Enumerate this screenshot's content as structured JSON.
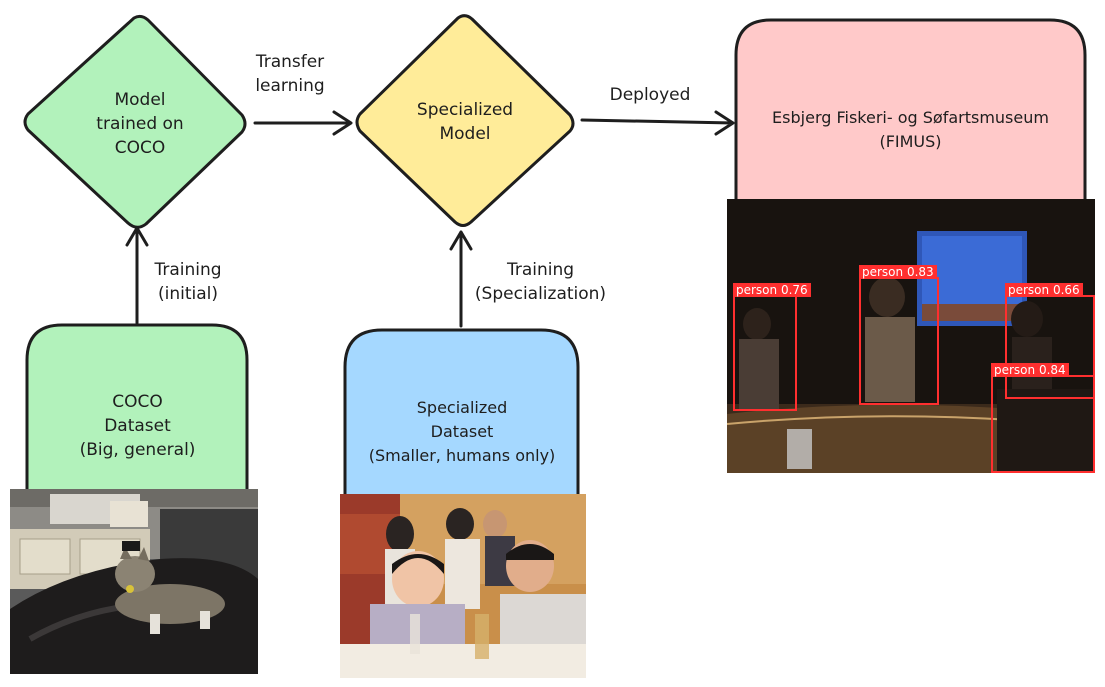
{
  "nodes": {
    "model_coco": {
      "lines": [
        "Model",
        "trained on",
        "COCO"
      ],
      "fill": "#b2f2bb"
    },
    "specialized_model": {
      "lines": [
        "Specialized",
        "Model"
      ],
      "fill": "#ffec99"
    },
    "museum": {
      "lines": [
        "Esbjerg Fiskeri- og Søfartsmuseum",
        "(FIMUS)"
      ],
      "fill": "#ffc9c9"
    },
    "coco_dataset": {
      "lines": [
        "COCO",
        "Dataset",
        "(Big, general)"
      ],
      "fill": "#b2f2bb"
    },
    "specialized_dataset": {
      "lines": [
        "Specialized",
        "Dataset",
        "(Smaller, humans only)"
      ],
      "fill": "#a5d8ff"
    }
  },
  "edges": {
    "transfer": [
      "Transfer",
      "learning"
    ],
    "deployed": [
      "Deployed"
    ],
    "training_initial": [
      "Training",
      "(initial)"
    ],
    "training_specialization": [
      "Training",
      "(Specialization)"
    ]
  },
  "detections": [
    {
      "label": "person 0.76"
    },
    {
      "label": "person 0.83"
    },
    {
      "label": "person 0.66"
    },
    {
      "label": "person 0.84"
    }
  ],
  "colors": {
    "stroke": "#1e1e1e",
    "detection": "#ff2f2f"
  }
}
